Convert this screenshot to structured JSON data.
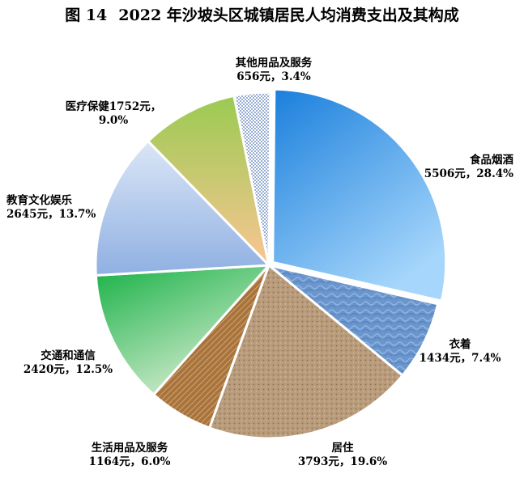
{
  "figure_number": "图 14",
  "chart_data": {
    "type": "pie",
    "title": "2022 年沙坡头区城镇居民人均消费支出及其构成",
    "unit": "元",
    "slices": [
      {
        "name": "食品烟酒",
        "value": 5506,
        "percent": 28.4,
        "value_label": "5506元，28.4%",
        "color": "#3a9ce8"
      },
      {
        "name": "衣着",
        "value": 1434,
        "percent": 7.4,
        "value_label": "1434元，7.4%",
        "color": "#6d97cc"
      },
      {
        "name": "居住",
        "value": 3793,
        "percent": 19.6,
        "value_label": "3793元，19.6%",
        "color": "#b59a7a"
      },
      {
        "name": "生活用品及服务",
        "value": 1164,
        "percent": 6.0,
        "value_label": "1164元，6.0%",
        "color": "#a8753f"
      },
      {
        "name": "交通和通信",
        "value": 2420,
        "percent": 12.5,
        "value_label": "2420元，12.5%",
        "color": "#3fbf5c"
      },
      {
        "name": "教育文化娱乐",
        "value": 2645,
        "percent": 13.7,
        "value_label": "2645元，13.7%",
        "color": "#a9c2e8"
      },
      {
        "name": "医疗保健",
        "value": 1752,
        "percent": 9.0,
        "value_label": "1752元，",
        "value_label2": "9.0%",
        "color": "#c3cf7a"
      },
      {
        "name": "其他用品及服务",
        "value": 656,
        "percent": 3.4,
        "value_label": "656元，3.4%",
        "color": "#d8e2f2"
      }
    ]
  }
}
